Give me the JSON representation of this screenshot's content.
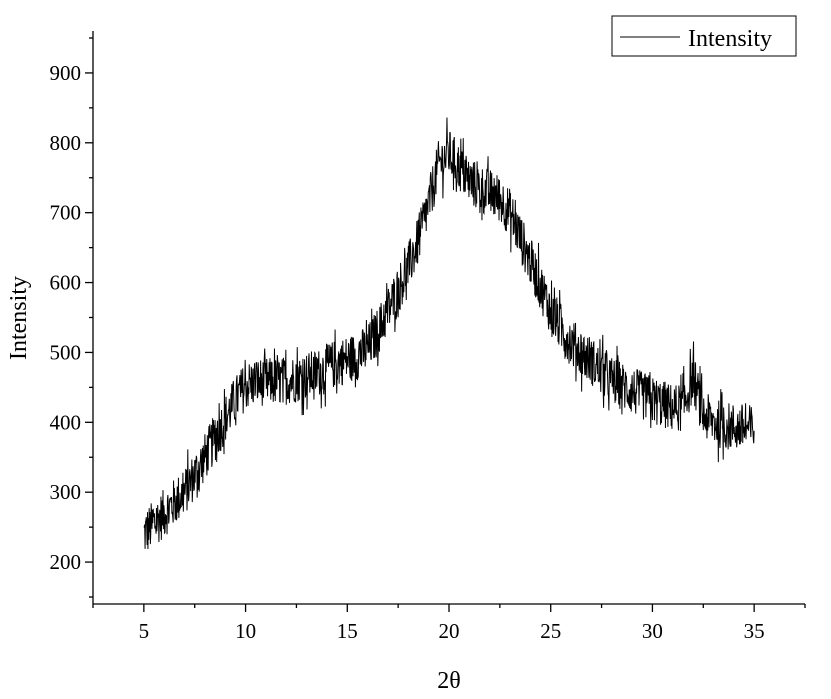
{
  "chart_data": {
    "type": "line",
    "xlabel": "2θ",
    "ylabel": "Intensity",
    "xlim": [
      2.5,
      37.5
    ],
    "ylim": [
      140,
      960
    ],
    "xticks": [
      5,
      10,
      15,
      20,
      25,
      30,
      35
    ],
    "yticks": [
      200,
      300,
      400,
      500,
      600,
      700,
      800,
      900
    ],
    "legend": {
      "position": "top-right",
      "entries": [
        "Intensity"
      ]
    },
    "grid": false,
    "series": [
      {
        "name": "Intensity",
        "color": "#000000",
        "x": [
          5,
          5.5,
          6,
          6.5,
          7,
          7.5,
          8,
          8.5,
          9,
          9.5,
          10,
          10.5,
          11,
          11.5,
          12,
          12.5,
          13,
          13.5,
          14,
          14.5,
          15,
          15.5,
          16,
          16.5,
          17,
          17.5,
          18,
          18.5,
          19,
          19.5,
          20,
          20.5,
          21,
          21.5,
          22,
          22.5,
          23,
          23.5,
          24,
          24.5,
          25,
          25.5,
          26,
          26.5,
          27,
          27.5,
          28,
          28.5,
          29,
          29.5,
          30,
          30.5,
          31,
          31.5,
          32,
          32.5,
          33,
          33.5,
          34,
          34.5,
          35
        ],
        "y": [
          240,
          255,
          270,
          285,
          300,
          325,
          350,
          378,
          405,
          432,
          452,
          458,
          458,
          458,
          460,
          463,
          466,
          470,
          478,
          485,
          490,
          495,
          505,
          530,
          560,
          590,
          622,
          660,
          712,
          770,
          785,
          765,
          745,
          735,
          728,
          720,
          700,
          665,
          630,
          595,
          560,
          535,
          515,
          500,
          488,
          472,
          460,
          452,
          445,
          438,
          432,
          426,
          420,
          422,
          465,
          410,
          400,
          395,
          393,
          392,
          390
        ],
        "noise_amplitude": 35
      }
    ]
  }
}
